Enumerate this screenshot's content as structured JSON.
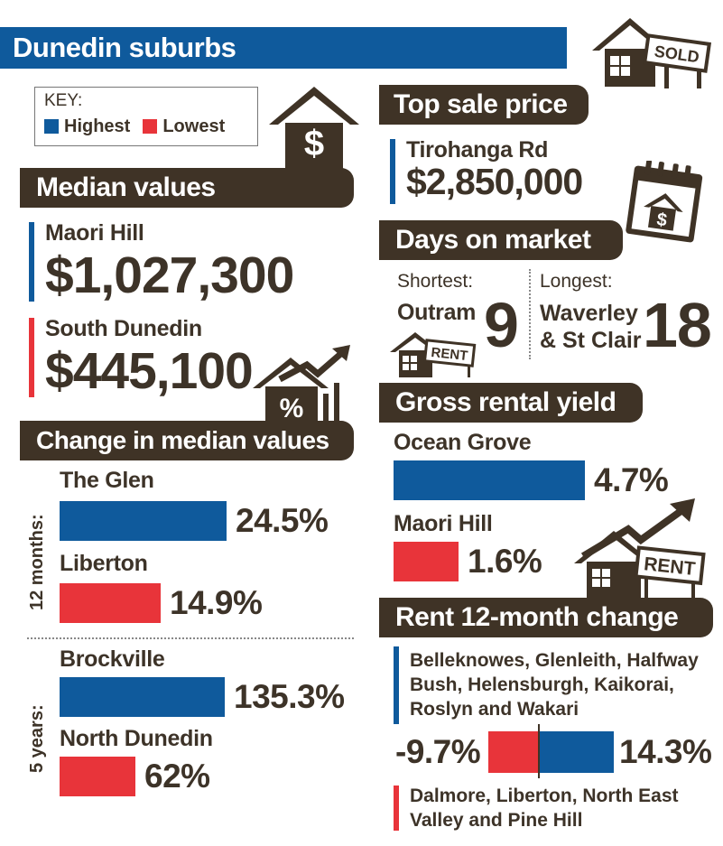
{
  "title": "Dunedin suburbs",
  "key": {
    "title": "KEY:",
    "highest": "Highest",
    "lowest": "Lowest",
    "colors": {
      "highest": "#0f5a9c",
      "lowest": "#e8343a"
    }
  },
  "median_values": {
    "heading": "Median values",
    "highest": {
      "suburb": "Maori Hill",
      "value": "$1,027,300"
    },
    "lowest": {
      "suburb": "South Dunedin",
      "value": "$445,100"
    }
  },
  "change_median": {
    "heading": "Change in median values",
    "twelve_months": {
      "label": "12 months:",
      "highest": {
        "suburb": "The Glen",
        "value": "24.5%",
        "number": 24.5
      },
      "lowest": {
        "suburb": "Liberton",
        "value": "14.9%",
        "number": 14.9
      }
    },
    "five_years": {
      "label": "5 years:",
      "highest": {
        "suburb": "Brockville",
        "value": "135.3%",
        "number": 135.3
      },
      "lowest": {
        "suburb": "North Dunedin",
        "value": "62%",
        "number": 62
      }
    }
  },
  "top_sale": {
    "heading": "Top sale price",
    "street": "Tirohanga Rd",
    "value": "$2,850,000"
  },
  "days_on_market": {
    "heading": "Days on market",
    "shortest": {
      "label": "Shortest:",
      "suburb": "Outram",
      "days": "9"
    },
    "longest": {
      "label": "Longest:",
      "suburb_line1": "Waverley",
      "suburb_line2": "& St Clair",
      "days": "18"
    }
  },
  "gross_rental_yield": {
    "heading": "Gross rental yield",
    "highest": {
      "suburb": "Ocean Grove",
      "value": "4.7%",
      "number": 4.7
    },
    "lowest": {
      "suburb": "Maori Hill",
      "value": "1.6%",
      "number": 1.6
    }
  },
  "rent_change": {
    "heading": "Rent 12-month change",
    "highest": {
      "suburbs": "Belleknowes, Glenleith, Halfway Bush, Helensburgh, Kaikorai, Roslyn and Wakari",
      "value": "14.3%",
      "number": 14.3
    },
    "lowest": {
      "suburbs": "Dalmore, Liberton, North East Valley and Pine Hill",
      "value": "-9.7%",
      "number": -9.7
    }
  },
  "icons": {
    "sold_sign": "SOLD",
    "rent_sign_small": "RENT",
    "rent_sign_large": "RENT",
    "dollar": "$",
    "percent": "%",
    "calendar_dollar": "$"
  }
}
